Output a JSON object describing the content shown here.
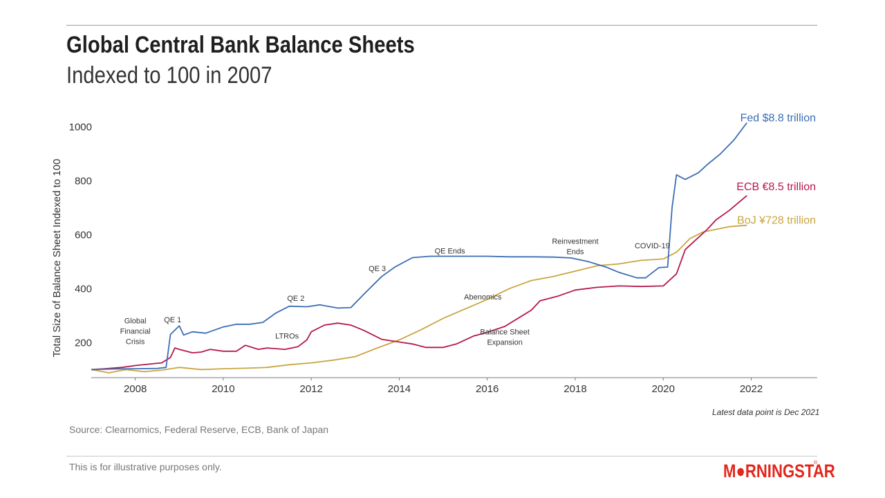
{
  "header": {
    "title": "Global Central Bank Balance Sheets",
    "subtitle": "Indexed to 100 in 2007"
  },
  "footer": {
    "source": "Source: Clearnomics, Federal Reserve, ECB, Bank of Japan",
    "latest_note": "Latest data point is Dec 2021",
    "disclaimer": "This is for illustrative purposes only.",
    "logo_text": "MORNINGSTAR"
  },
  "colors": {
    "fed": "#3a6db5",
    "ecb": "#b5174b",
    "boj": "#c9a53f",
    "logo": "#e3261b"
  },
  "chart_data": {
    "type": "line",
    "title": "Global Central Bank Balance Sheets",
    "subtitle": "Indexed to 100 in 2007",
    "ylabel": "Total Size of Balance Sheet Indexed to 100",
    "xlabel": "",
    "xlim": [
      2007,
      2023.5
    ],
    "ylim": [
      70,
      1060
    ],
    "x_ticks": [
      2008,
      2010,
      2012,
      2014,
      2016,
      2018,
      2020,
      2022
    ],
    "y_ticks": [
      200,
      400,
      600,
      800,
      1000
    ],
    "grid": false,
    "series": [
      {
        "name": "Fed",
        "end_label": "Fed $8.8 trillion",
        "color": "#3a6db5",
        "points": [
          [
            2007.0,
            100
          ],
          [
            2007.5,
            102
          ],
          [
            2008.0,
            103
          ],
          [
            2008.5,
            104
          ],
          [
            2008.7,
            108
          ],
          [
            2008.8,
            230
          ],
          [
            2009.0,
            262
          ],
          [
            2009.1,
            228
          ],
          [
            2009.3,
            240
          ],
          [
            2009.6,
            235
          ],
          [
            2010.0,
            258
          ],
          [
            2010.3,
            268
          ],
          [
            2010.6,
            268
          ],
          [
            2010.9,
            275
          ],
          [
            2011.2,
            310
          ],
          [
            2011.5,
            335
          ],
          [
            2011.9,
            333
          ],
          [
            2012.2,
            340
          ],
          [
            2012.6,
            328
          ],
          [
            2012.9,
            330
          ],
          [
            2013.2,
            380
          ],
          [
            2013.6,
            445
          ],
          [
            2013.9,
            480
          ],
          [
            2014.3,
            515
          ],
          [
            2014.7,
            520
          ],
          [
            2015.0,
            520
          ],
          [
            2015.5,
            520
          ],
          [
            2016.0,
            520
          ],
          [
            2016.5,
            518
          ],
          [
            2017.0,
            518
          ],
          [
            2017.5,
            517
          ],
          [
            2017.9,
            514
          ],
          [
            2018.3,
            500
          ],
          [
            2018.7,
            480
          ],
          [
            2019.0,
            460
          ],
          [
            2019.4,
            440
          ],
          [
            2019.6,
            440
          ],
          [
            2019.9,
            478
          ],
          [
            2020.1,
            480
          ],
          [
            2020.2,
            700
          ],
          [
            2020.3,
            822
          ],
          [
            2020.5,
            805
          ],
          [
            2020.8,
            830
          ],
          [
            2021.0,
            860
          ],
          [
            2021.3,
            900
          ],
          [
            2021.6,
            950
          ],
          [
            2021.9,
            1015
          ]
        ]
      },
      {
        "name": "ECB",
        "end_label": "ECB €8.5 trillion",
        "color": "#b5174b",
        "points": [
          [
            2007.0,
            100
          ],
          [
            2007.3,
            103
          ],
          [
            2007.7,
            108
          ],
          [
            2008.0,
            115
          ],
          [
            2008.3,
            120
          ],
          [
            2008.6,
            125
          ],
          [
            2008.8,
            145
          ],
          [
            2008.9,
            180
          ],
          [
            2009.0,
            175
          ],
          [
            2009.3,
            162
          ],
          [
            2009.5,
            165
          ],
          [
            2009.7,
            175
          ],
          [
            2010.0,
            168
          ],
          [
            2010.3,
            168
          ],
          [
            2010.5,
            190
          ],
          [
            2010.8,
            175
          ],
          [
            2011.0,
            180
          ],
          [
            2011.4,
            175
          ],
          [
            2011.7,
            185
          ],
          [
            2011.9,
            210
          ],
          [
            2012.0,
            240
          ],
          [
            2012.3,
            265
          ],
          [
            2012.6,
            272
          ],
          [
            2012.9,
            265
          ],
          [
            2013.2,
            245
          ],
          [
            2013.6,
            212
          ],
          [
            2014.0,
            202
          ],
          [
            2014.3,
            195
          ],
          [
            2014.6,
            182
          ],
          [
            2015.0,
            182
          ],
          [
            2015.3,
            195
          ],
          [
            2015.7,
            225
          ],
          [
            2016.0,
            238
          ],
          [
            2016.4,
            260
          ],
          [
            2016.7,
            290
          ],
          [
            2017.0,
            320
          ],
          [
            2017.2,
            355
          ],
          [
            2017.6,
            372
          ],
          [
            2018.0,
            395
          ],
          [
            2018.5,
            405
          ],
          [
            2019.0,
            410
          ],
          [
            2019.5,
            408
          ],
          [
            2020.0,
            410
          ],
          [
            2020.3,
            455
          ],
          [
            2020.5,
            545
          ],
          [
            2020.8,
            590
          ],
          [
            2021.0,
            620
          ],
          [
            2021.2,
            655
          ],
          [
            2021.5,
            690
          ],
          [
            2021.9,
            745
          ]
        ]
      },
      {
        "name": "BoJ",
        "end_label": "BoJ ¥728 trillion",
        "color": "#c9a53f",
        "points": [
          [
            2007.0,
            100
          ],
          [
            2007.4,
            88
          ],
          [
            2007.8,
            100
          ],
          [
            2008.2,
            92
          ],
          [
            2008.6,
            98
          ],
          [
            2009.0,
            108
          ],
          [
            2009.5,
            100
          ],
          [
            2010.0,
            103
          ],
          [
            2010.5,
            105
          ],
          [
            2011.0,
            108
          ],
          [
            2011.5,
            118
          ],
          [
            2012.0,
            125
          ],
          [
            2012.5,
            135
          ],
          [
            2013.0,
            148
          ],
          [
            2013.5,
            180
          ],
          [
            2014.0,
            210
          ],
          [
            2014.5,
            248
          ],
          [
            2015.0,
            290
          ],
          [
            2015.5,
            325
          ],
          [
            2016.0,
            360
          ],
          [
            2016.5,
            400
          ],
          [
            2017.0,
            430
          ],
          [
            2017.5,
            445
          ],
          [
            2018.0,
            465
          ],
          [
            2018.5,
            485
          ],
          [
            2019.0,
            492
          ],
          [
            2019.5,
            505
          ],
          [
            2020.0,
            510
          ],
          [
            2020.3,
            535
          ],
          [
            2020.6,
            585
          ],
          [
            2020.9,
            610
          ],
          [
            2021.2,
            620
          ],
          [
            2021.5,
            630
          ],
          [
            2021.9,
            635
          ]
        ]
      }
    ],
    "annotations": [
      {
        "lines": [
          "Global",
          "Financial",
          "Crisis"
        ],
        "x": 2008.0,
        "y": 200
      },
      {
        "lines": [
          "QE 1"
        ],
        "x": 2008.85,
        "y": 275
      },
      {
        "lines": [
          "LTROs"
        ],
        "x": 2011.45,
        "y": 215
      },
      {
        "lines": [
          "QE 2"
        ],
        "x": 2011.65,
        "y": 355
      },
      {
        "lines": [
          "QE 3"
        ],
        "x": 2013.5,
        "y": 465
      },
      {
        "lines": [
          "QE Ends"
        ],
        "x": 2015.15,
        "y": 530
      },
      {
        "lines": [
          "Abenomics"
        ],
        "x": 2015.9,
        "y": 360
      },
      {
        "lines": [
          "Balance Sheet",
          "Expansion"
        ],
        "x": 2016.4,
        "y": 195
      },
      {
        "lines": [
          "Reinvestment",
          "Ends"
        ],
        "x": 2018.0,
        "y": 530
      },
      {
        "lines": [
          "COVID-19"
        ],
        "x": 2019.75,
        "y": 550
      }
    ]
  }
}
